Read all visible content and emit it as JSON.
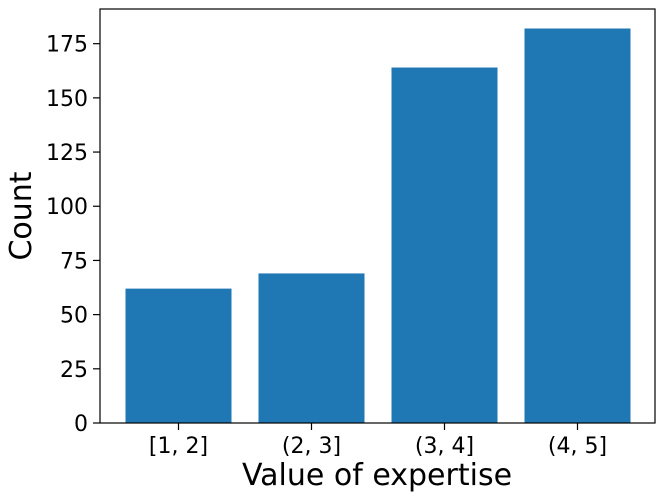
{
  "chart_data": {
    "type": "bar",
    "title": "",
    "xlabel": "Value of expertise",
    "ylabel": "Count",
    "categories": [
      "[1, 2]",
      "(2, 3]",
      "(3, 4]",
      "(4, 5]"
    ],
    "values": [
      62,
      69,
      164,
      182
    ],
    "ylim": [
      0,
      191
    ],
    "yticks": [
      0,
      25,
      50,
      75,
      100,
      125,
      150,
      175
    ],
    "grid": false,
    "legend": "none",
    "bar_color": "#1f77b4"
  }
}
